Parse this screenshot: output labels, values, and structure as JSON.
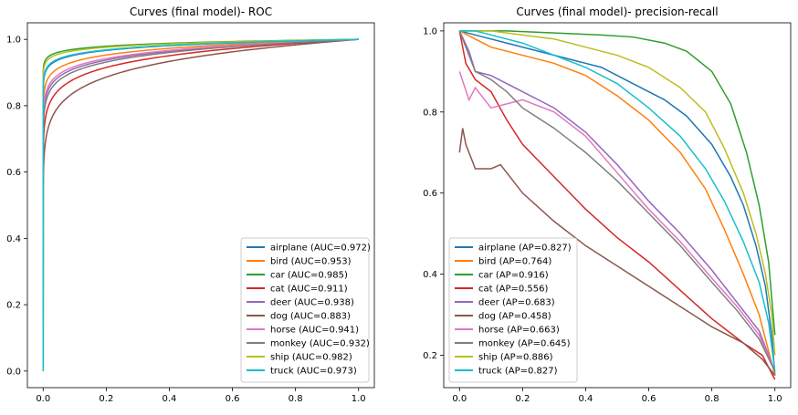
{
  "chart_data": [
    {
      "type": "line",
      "title": "Curves (final model)- ROC",
      "xlabel": "",
      "ylabel": "",
      "xlim": [
        -0.05,
        1.05
      ],
      "ylim": [
        -0.05,
        1.05
      ],
      "xticks": [
        "0.0",
        "0.2",
        "0.4",
        "0.6",
        "0.8",
        "1.0"
      ],
      "yticks": [
        "0.0",
        "0.2",
        "0.4",
        "0.6",
        "0.8",
        "1.0"
      ],
      "grid": false,
      "legend_position": "lower-right",
      "series": [
        {
          "name": "airplane (AUC=0.972)",
          "color": "#1f77b4",
          "shape": 0.021
        },
        {
          "name": "bird (AUC=0.953)",
          "color": "#ff7f0e",
          "shape": 0.03
        },
        {
          "name": "car (AUC=0.985)",
          "color": "#2ca02c",
          "shape": 0.013
        },
        {
          "name": "cat (AUC=0.911)",
          "color": "#d62728",
          "shape": 0.055
        },
        {
          "name": "deer (AUC=0.938)",
          "color": "#9467bd",
          "shape": 0.04
        },
        {
          "name": "dog (AUC=0.883)",
          "color": "#8c564b",
          "shape": 0.075
        },
        {
          "name": "horse (AUC=0.941)",
          "color": "#e377c2",
          "shape": 0.037
        },
        {
          "name": "monkey (AUC=0.932)",
          "color": "#7f7f7f",
          "shape": 0.044
        },
        {
          "name": "ship (AUC=0.982)",
          "color": "#bcbd22",
          "shape": 0.015
        },
        {
          "name": "truck (AUC=0.973)",
          "color": "#17becf",
          "shape": 0.02
        }
      ]
    },
    {
      "type": "line",
      "title": "Curves (final model)- precision-recall",
      "xlabel": "",
      "ylabel": "",
      "xlim": [
        -0.05,
        1.05
      ],
      "ylim": [
        0.12,
        1.02
      ],
      "xticks": [
        "0.0",
        "0.2",
        "0.4",
        "0.6",
        "0.8",
        "1.0"
      ],
      "yticks": [
        "0.2",
        "0.4",
        "0.6",
        "0.8",
        "1.0"
      ],
      "grid": false,
      "legend_position": "lower-left",
      "series": [
        {
          "name": "airplane (AP=0.827)",
          "color": "#1f77b4",
          "points": [
            [
              0.0,
              1.0
            ],
            [
              0.05,
              0.99
            ],
            [
              0.15,
              0.97
            ],
            [
              0.25,
              0.95
            ],
            [
              0.35,
              0.93
            ],
            [
              0.45,
              0.91
            ],
            [
              0.55,
              0.87
            ],
            [
              0.65,
              0.83
            ],
            [
              0.72,
              0.79
            ],
            [
              0.8,
              0.72
            ],
            [
              0.86,
              0.64
            ],
            [
              0.9,
              0.57
            ],
            [
              0.94,
              0.47
            ],
            [
              0.97,
              0.37
            ],
            [
              0.99,
              0.25
            ],
            [
              1.0,
              0.15
            ]
          ]
        },
        {
          "name": "bird (AP=0.764)",
          "color": "#ff7f0e",
          "points": [
            [
              0.0,
              1.0
            ],
            [
              0.05,
              0.98
            ],
            [
              0.1,
              0.96
            ],
            [
              0.2,
              0.94
            ],
            [
              0.3,
              0.92
            ],
            [
              0.4,
              0.89
            ],
            [
              0.5,
              0.84
            ],
            [
              0.6,
              0.78
            ],
            [
              0.7,
              0.7
            ],
            [
              0.78,
              0.61
            ],
            [
              0.84,
              0.51
            ],
            [
              0.9,
              0.4
            ],
            [
              0.95,
              0.3
            ],
            [
              1.0,
              0.15
            ]
          ]
        },
        {
          "name": "car (AP=0.916)",
          "color": "#2ca02c",
          "points": [
            [
              0.0,
              1.0
            ],
            [
              0.15,
              1.0
            ],
            [
              0.3,
              0.995
            ],
            [
              0.45,
              0.99
            ],
            [
              0.55,
              0.985
            ],
            [
              0.65,
              0.97
            ],
            [
              0.72,
              0.95
            ],
            [
              0.8,
              0.9
            ],
            [
              0.86,
              0.82
            ],
            [
              0.91,
              0.7
            ],
            [
              0.95,
              0.57
            ],
            [
              0.98,
              0.43
            ],
            [
              1.0,
              0.25
            ]
          ]
        },
        {
          "name": "cat (AP=0.556)",
          "color": "#d62728",
          "points": [
            [
              0.0,
              1.0
            ],
            [
              0.02,
              0.92
            ],
            [
              0.05,
              0.88
            ],
            [
              0.1,
              0.85
            ],
            [
              0.15,
              0.78
            ],
            [
              0.2,
              0.72
            ],
            [
              0.3,
              0.64
            ],
            [
              0.4,
              0.56
            ],
            [
              0.5,
              0.49
            ],
            [
              0.6,
              0.43
            ],
            [
              0.7,
              0.36
            ],
            [
              0.8,
              0.29
            ],
            [
              0.9,
              0.23
            ],
            [
              0.96,
              0.2
            ],
            [
              1.0,
              0.14
            ]
          ]
        },
        {
          "name": "deer (AP=0.683)",
          "color": "#9467bd",
          "points": [
            [
              0.0,
              1.0
            ],
            [
              0.03,
              0.95
            ],
            [
              0.05,
              0.9
            ],
            [
              0.1,
              0.89
            ],
            [
              0.15,
              0.87
            ],
            [
              0.2,
              0.85
            ],
            [
              0.3,
              0.81
            ],
            [
              0.4,
              0.75
            ],
            [
              0.5,
              0.67
            ],
            [
              0.6,
              0.58
            ],
            [
              0.7,
              0.5
            ],
            [
              0.8,
              0.41
            ],
            [
              0.88,
              0.33
            ],
            [
              0.95,
              0.26
            ],
            [
              1.0,
              0.16
            ]
          ]
        },
        {
          "name": "dog (AP=0.458)",
          "color": "#8c564b",
          "points": [
            [
              0.0,
              0.7
            ],
            [
              0.01,
              0.76
            ],
            [
              0.02,
              0.72
            ],
            [
              0.05,
              0.66
            ],
            [
              0.1,
              0.66
            ],
            [
              0.13,
              0.67
            ],
            [
              0.2,
              0.6
            ],
            [
              0.3,
              0.53
            ],
            [
              0.4,
              0.47
            ],
            [
              0.5,
              0.42
            ],
            [
              0.6,
              0.37
            ],
            [
              0.7,
              0.32
            ],
            [
              0.8,
              0.27
            ],
            [
              0.9,
              0.23
            ],
            [
              0.96,
              0.19
            ],
            [
              1.0,
              0.15
            ]
          ]
        },
        {
          "name": "horse (AP=0.663)",
          "color": "#e377c2",
          "points": [
            [
              0.0,
              0.9
            ],
            [
              0.03,
              0.83
            ],
            [
              0.05,
              0.86
            ],
            [
              0.1,
              0.81
            ],
            [
              0.15,
              0.82
            ],
            [
              0.2,
              0.83
            ],
            [
              0.3,
              0.8
            ],
            [
              0.4,
              0.74
            ],
            [
              0.5,
              0.65
            ],
            [
              0.6,
              0.56
            ],
            [
              0.7,
              0.48
            ],
            [
              0.8,
              0.39
            ],
            [
              0.88,
              0.32
            ],
            [
              0.95,
              0.25
            ],
            [
              1.0,
              0.16
            ]
          ]
        },
        {
          "name": "monkey (AP=0.645)",
          "color": "#7f7f7f",
          "points": [
            [
              0.0,
              1.0
            ],
            [
              0.05,
              0.9
            ],
            [
              0.1,
              0.88
            ],
            [
              0.15,
              0.85
            ],
            [
              0.2,
              0.81
            ],
            [
              0.3,
              0.76
            ],
            [
              0.4,
              0.7
            ],
            [
              0.5,
              0.63
            ],
            [
              0.6,
              0.55
            ],
            [
              0.7,
              0.47
            ],
            [
              0.8,
              0.38
            ],
            [
              0.88,
              0.31
            ],
            [
              0.95,
              0.24
            ],
            [
              1.0,
              0.16
            ]
          ]
        },
        {
          "name": "ship (AP=0.886)",
          "color": "#bcbd22",
          "points": [
            [
              0.0,
              1.0
            ],
            [
              0.1,
              1.0
            ],
            [
              0.2,
              0.99
            ],
            [
              0.3,
              0.98
            ],
            [
              0.4,
              0.96
            ],
            [
              0.5,
              0.94
            ],
            [
              0.6,
              0.91
            ],
            [
              0.7,
              0.86
            ],
            [
              0.78,
              0.8
            ],
            [
              0.84,
              0.71
            ],
            [
              0.9,
              0.6
            ],
            [
              0.94,
              0.5
            ],
            [
              0.97,
              0.4
            ],
            [
              0.99,
              0.3
            ],
            [
              1.0,
              0.2
            ]
          ]
        },
        {
          "name": "truck (AP=0.827)",
          "color": "#17becf",
          "points": [
            [
              0.0,
              1.0
            ],
            [
              0.05,
              1.0
            ],
            [
              0.1,
              0.99
            ],
            [
              0.2,
              0.97
            ],
            [
              0.3,
              0.94
            ],
            [
              0.4,
              0.91
            ],
            [
              0.5,
              0.87
            ],
            [
              0.6,
              0.81
            ],
            [
              0.7,
              0.74
            ],
            [
              0.78,
              0.66
            ],
            [
              0.84,
              0.58
            ],
            [
              0.9,
              0.48
            ],
            [
              0.95,
              0.38
            ],
            [
              0.98,
              0.28
            ],
            [
              1.0,
              0.16
            ]
          ]
        }
      ]
    }
  ]
}
